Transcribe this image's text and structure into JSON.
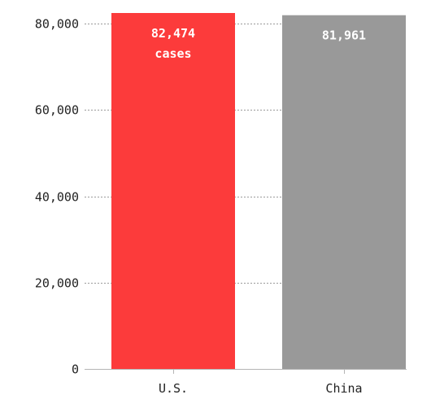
{
  "chart_data": {
    "type": "bar",
    "categories": [
      "U.S.",
      "China"
    ],
    "values": [
      82474,
      81961
    ],
    "value_labels": [
      "82,474",
      "81,961"
    ],
    "value_unit_label": "cases",
    "colors": [
      "#fc3b3b",
      "#999999"
    ],
    "ylim": [
      0,
      82474
    ],
    "yticks": [
      0,
      20000,
      40000,
      60000,
      80000
    ],
    "ytick_labels": [
      "0",
      "20,000",
      "40,000",
      "60,000",
      "80,000"
    ],
    "grid": true,
    "title": "",
    "xlabel": "",
    "ylabel": ""
  }
}
